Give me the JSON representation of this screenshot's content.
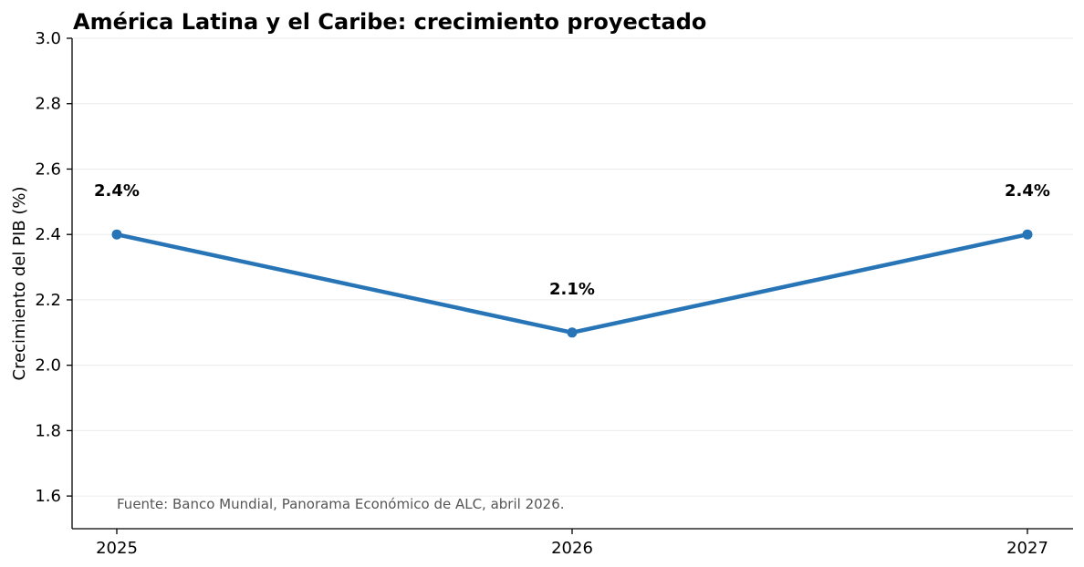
{
  "chart_data": {
    "type": "line",
    "title": "América Latina y el Caribe: crecimiento proyectado",
    "xlabel": "",
    "ylabel": "Crecimiento del PIB (%)",
    "categories": [
      "2025",
      "2026",
      "2027"
    ],
    "series": [
      {
        "values": [
          2.4,
          2.1,
          2.4
        ],
        "data_labels": [
          "2.4%",
          "2.1%",
          "2.4%"
        ],
        "color": "#2775b6"
      }
    ],
    "ylim": [
      1.5,
      3.0
    ],
    "yticks": [
      1.6,
      1.8,
      2.0,
      2.2,
      2.4,
      2.6,
      2.8,
      3.0
    ],
    "ytick_labels": [
      "1.6",
      "1.8",
      "2.0",
      "2.2",
      "2.4",
      "2.6",
      "2.8",
      "3.0"
    ],
    "grid": "horizontal",
    "legend": "none",
    "source_note": "Fuente: Banco Mundial, Panorama Económico de ALC, abril 2026."
  }
}
